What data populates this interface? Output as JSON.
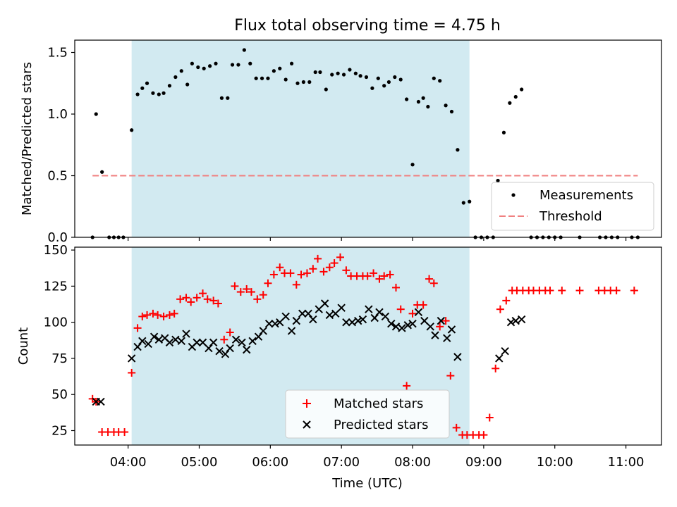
{
  "title": "Flux total observing time = 4.75 h",
  "chart_data": [
    {
      "type": "scatter",
      "panel": "top",
      "ylabel": "Matched/Predicted stars",
      "ylim": [
        0,
        1.6
      ],
      "yticks": [
        0.0,
        0.5,
        1.0,
        1.5
      ],
      "ytick_labels": [
        "0.0",
        "0.5",
        "1.0",
        "1.5"
      ],
      "xlim": [
        "03:15",
        "11:30"
      ],
      "shaded_region": {
        "from": "04:03",
        "to": "08:48",
        "color": "#add8e6"
      },
      "legend_position": "lower right",
      "series": [
        {
          "name": "Measurements",
          "marker": "dot",
          "color": "#000000",
          "points": [
            [
              "03:30",
              0
            ],
            [
              "03:33",
              1.0
            ],
            [
              "03:38",
              0.53
            ],
            [
              "03:44",
              0
            ],
            [
              "03:48",
              0
            ],
            [
              "03:52",
              0
            ],
            [
              "03:56",
              0
            ],
            [
              "04:03",
              0.87
            ],
            [
              "04:08",
              1.16
            ],
            [
              "04:12",
              1.21
            ],
            [
              "04:16",
              1.25
            ],
            [
              "04:21",
              1.17
            ],
            [
              "04:26",
              1.16
            ],
            [
              "04:30",
              1.17
            ],
            [
              "04:35",
              1.23
            ],
            [
              "04:40",
              1.3
            ],
            [
              "04:45",
              1.35
            ],
            [
              "04:50",
              1.24
            ],
            [
              "04:54",
              1.41
            ],
            [
              "04:59",
              1.38
            ],
            [
              "05:04",
              1.37
            ],
            [
              "05:09",
              1.39
            ],
            [
              "05:14",
              1.41
            ],
            [
              "05:19",
              1.13
            ],
            [
              "05:24",
              1.13
            ],
            [
              "05:28",
              1.4
            ],
            [
              "05:33",
              1.4
            ],
            [
              "05:38",
              1.52
            ],
            [
              "05:43",
              1.41
            ],
            [
              "05:48",
              1.29
            ],
            [
              "05:53",
              1.29
            ],
            [
              "05:58",
              1.29
            ],
            [
              "06:03",
              1.35
            ],
            [
              "06:08",
              1.37
            ],
            [
              "06:13",
              1.28
            ],
            [
              "06:18",
              1.41
            ],
            [
              "06:23",
              1.25
            ],
            [
              "06:28",
              1.26
            ],
            [
              "06:33",
              1.26
            ],
            [
              "06:38",
              1.34
            ],
            [
              "06:42",
              1.34
            ],
            [
              "06:47",
              1.2
            ],
            [
              "06:52",
              1.32
            ],
            [
              "06:57",
              1.33
            ],
            [
              "07:02",
              1.32
            ],
            [
              "07:07",
              1.36
            ],
            [
              "07:12",
              1.33
            ],
            [
              "07:16",
              1.31
            ],
            [
              "07:21",
              1.3
            ],
            [
              "07:26",
              1.21
            ],
            [
              "07:31",
              1.29
            ],
            [
              "07:36",
              1.23
            ],
            [
              "07:40",
              1.26
            ],
            [
              "07:45",
              1.3
            ],
            [
              "07:50",
              1.28
            ],
            [
              "07:55",
              1.12
            ],
            [
              "08:00",
              0.59
            ],
            [
              "08:05",
              1.1
            ],
            [
              "08:09",
              1.13
            ],
            [
              "08:13",
              1.06
            ],
            [
              "08:18",
              1.29
            ],
            [
              "08:23",
              1.27
            ],
            [
              "08:28",
              1.07
            ],
            [
              "08:33",
              1.02
            ],
            [
              "08:38",
              0.71
            ],
            [
              "08:43",
              0.28
            ],
            [
              "08:48",
              0.29
            ],
            [
              "08:53",
              0
            ],
            [
              "08:58",
              0
            ],
            [
              "09:03",
              0
            ],
            [
              "09:08",
              0
            ],
            [
              "09:12",
              0.46
            ],
            [
              "09:17",
              0.85
            ],
            [
              "09:22",
              1.09
            ],
            [
              "09:27",
              1.14
            ],
            [
              "09:32",
              1.2
            ],
            [
              "09:40",
              0
            ],
            [
              "09:45",
              0
            ],
            [
              "09:50",
              0
            ],
            [
              "09:55",
              0
            ],
            [
              "10:00",
              0
            ],
            [
              "10:05",
              0
            ],
            [
              "10:21",
              0
            ],
            [
              "10:38",
              0
            ],
            [
              "10:43",
              0
            ],
            [
              "10:48",
              0
            ],
            [
              "10:53",
              0
            ],
            [
              "11:05",
              0
            ],
            [
              "11:10",
              0
            ]
          ]
        },
        {
          "name": "Threshold",
          "line_style": "dashed",
          "color": "#f08080",
          "points": [
            [
              "03:30",
              0.5
            ],
            [
              "11:10",
              0.5
            ]
          ]
        }
      ]
    },
    {
      "type": "scatter",
      "panel": "bottom",
      "ylabel": "Count",
      "xlabel": "Time (UTC)",
      "ylim": [
        15,
        152
      ],
      "yticks": [
        25,
        50,
        75,
        100,
        125,
        150
      ],
      "ytick_labels": [
        "25",
        "50",
        "75",
        "100",
        "125",
        "150"
      ],
      "xlim": [
        "03:15",
        "11:30"
      ],
      "xticks": [
        "04:00",
        "05:00",
        "06:00",
        "07:00",
        "08:00",
        "09:00",
        "10:00",
        "11:00"
      ],
      "xtick_labels": [
        "04:00",
        "05:00",
        "06:00",
        "07:00",
        "08:00",
        "09:00",
        "10:00",
        "11:00"
      ],
      "shaded_region": {
        "from": "04:03",
        "to": "08:48",
        "color": "#add8e6"
      },
      "legend_position": "lower center",
      "series": [
        {
          "name": "Matched stars",
          "marker": "plus",
          "color": "#ff0000",
          "points": [
            [
              "03:30",
              47
            ],
            [
              "03:33",
              45
            ],
            [
              "03:38",
              24
            ],
            [
              "03:43",
              24
            ],
            [
              "03:48",
              24
            ],
            [
              "03:52",
              24
            ],
            [
              "03:57",
              24
            ],
            [
              "04:03",
              65
            ],
            [
              "04:08",
              96
            ],
            [
              "04:12",
              104
            ],
            [
              "04:16",
              105
            ],
            [
              "04:21",
              106
            ],
            [
              "04:25",
              105
            ],
            [
              "04:30",
              104
            ],
            [
              "04:35",
              105
            ],
            [
              "04:39",
              106
            ],
            [
              "04:44",
              116
            ],
            [
              "04:49",
              117
            ],
            [
              "04:53",
              114
            ],
            [
              "04:58",
              117
            ],
            [
              "05:03",
              120
            ],
            [
              "05:07",
              116
            ],
            [
              "05:12",
              115
            ],
            [
              "05:16",
              113
            ],
            [
              "05:21",
              88
            ],
            [
              "05:26",
              93
            ],
            [
              "05:30",
              125
            ],
            [
              "05:35",
              121
            ],
            [
              "05:40",
              123
            ],
            [
              "05:44",
              121
            ],
            [
              "05:49",
              116
            ],
            [
              "05:54",
              119
            ],
            [
              "05:58",
              127
            ],
            [
              "06:03",
              133
            ],
            [
              "06:08",
              138
            ],
            [
              "06:12",
              134
            ],
            [
              "06:17",
              134
            ],
            [
              "06:22",
              126
            ],
            [
              "06:26",
              133
            ],
            [
              "06:31",
              134
            ],
            [
              "06:36",
              137
            ],
            [
              "06:40",
              144
            ],
            [
              "06:45",
              135
            ],
            [
              "06:50",
              138
            ],
            [
              "06:54",
              141
            ],
            [
              "06:59",
              145
            ],
            [
              "07:04",
              136
            ],
            [
              "07:08",
              132
            ],
            [
              "07:13",
              132
            ],
            [
              "07:18",
              132
            ],
            [
              "07:22",
              132
            ],
            [
              "07:27",
              134
            ],
            [
              "07:32",
              130
            ],
            [
              "07:36",
              132
            ],
            [
              "07:41",
              133
            ],
            [
              "07:46",
              124
            ],
            [
              "07:50",
              109
            ],
            [
              "07:55",
              56
            ],
            [
              "08:00",
              106
            ],
            [
              "08:04",
              112
            ],
            [
              "08:09",
              112
            ],
            [
              "08:14",
              130
            ],
            [
              "08:18",
              127
            ],
            [
              "08:23",
              97
            ],
            [
              "08:28",
              101
            ],
            [
              "08:32",
              63
            ],
            [
              "08:37",
              27
            ],
            [
              "08:42",
              22
            ],
            [
              "08:46",
              22
            ],
            [
              "08:51",
              22
            ],
            [
              "08:56",
              22
            ],
            [
              "09:00",
              22
            ],
            [
              "09:05",
              34
            ],
            [
              "09:10",
              68
            ],
            [
              "09:14",
              109
            ],
            [
              "09:19",
              115
            ],
            [
              "09:24",
              122
            ],
            [
              "09:28",
              122
            ],
            [
              "09:33",
              122
            ],
            [
              "09:38",
              122
            ],
            [
              "09:42",
              122
            ],
            [
              "09:47",
              122
            ],
            [
              "09:52",
              122
            ],
            [
              "09:56",
              122
            ],
            [
              "10:06",
              122
            ],
            [
              "10:21",
              122
            ],
            [
              "10:37",
              122
            ],
            [
              "10:42",
              122
            ],
            [
              "10:47",
              122
            ],
            [
              "10:52",
              122
            ],
            [
              "11:07",
              122
            ]
          ]
        },
        {
          "name": "Predicted stars",
          "marker": "x",
          "color": "#000000",
          "points": [
            [
              "03:33",
              45
            ],
            [
              "03:37",
              45
            ],
            [
              "04:03",
              75
            ],
            [
              "04:08",
              83
            ],
            [
              "04:12",
              87
            ],
            [
              "04:17",
              85
            ],
            [
              "04:22",
              90
            ],
            [
              "04:26",
              88
            ],
            [
              "04:31",
              89
            ],
            [
              "04:35",
              86
            ],
            [
              "04:40",
              88
            ],
            [
              "04:45",
              87
            ],
            [
              "04:49",
              92
            ],
            [
              "04:54",
              83
            ],
            [
              "04:58",
              86
            ],
            [
              "05:03",
              86
            ],
            [
              "05:08",
              82
            ],
            [
              "05:12",
              86
            ],
            [
              "05:17",
              80
            ],
            [
              "05:22",
              78
            ],
            [
              "05:26",
              82
            ],
            [
              "05:31",
              88
            ],
            [
              "05:36",
              86
            ],
            [
              "05:40",
              81
            ],
            [
              "05:45",
              87
            ],
            [
              "05:50",
              90
            ],
            [
              "05:54",
              94
            ],
            [
              "05:59",
              99
            ],
            [
              "06:04",
              99
            ],
            [
              "06:08",
              100
            ],
            [
              "06:13",
              104
            ],
            [
              "06:18",
              94
            ],
            [
              "06:22",
              101
            ],
            [
              "06:27",
              106
            ],
            [
              "06:32",
              106
            ],
            [
              "06:36",
              102
            ],
            [
              "06:41",
              109
            ],
            [
              "06:46",
              113
            ],
            [
              "06:50",
              105
            ],
            [
              "06:55",
              106
            ],
            [
              "07:00",
              110
            ],
            [
              "07:04",
              100
            ],
            [
              "07:09",
              100
            ],
            [
              "07:14",
              101
            ],
            [
              "07:18",
              102
            ],
            [
              "07:23",
              109
            ],
            [
              "07:28",
              103
            ],
            [
              "07:32",
              107
            ],
            [
              "07:37",
              104
            ],
            [
              "07:42",
              99
            ],
            [
              "07:46",
              97
            ],
            [
              "07:51",
              96
            ],
            [
              "07:56",
              98
            ],
            [
              "08:00",
              99
            ],
            [
              "08:05",
              107
            ],
            [
              "08:10",
              101
            ],
            [
              "08:15",
              97
            ],
            [
              "08:19",
              91
            ],
            [
              "08:24",
              101
            ],
            [
              "08:29",
              89
            ],
            [
              "08:33",
              95
            ],
            [
              "08:38",
              76
            ],
            [
              "09:13",
              75
            ],
            [
              "09:18",
              80
            ],
            [
              "09:23",
              100
            ],
            [
              "09:27",
              101
            ],
            [
              "09:32",
              102
            ]
          ]
        }
      ]
    }
  ]
}
